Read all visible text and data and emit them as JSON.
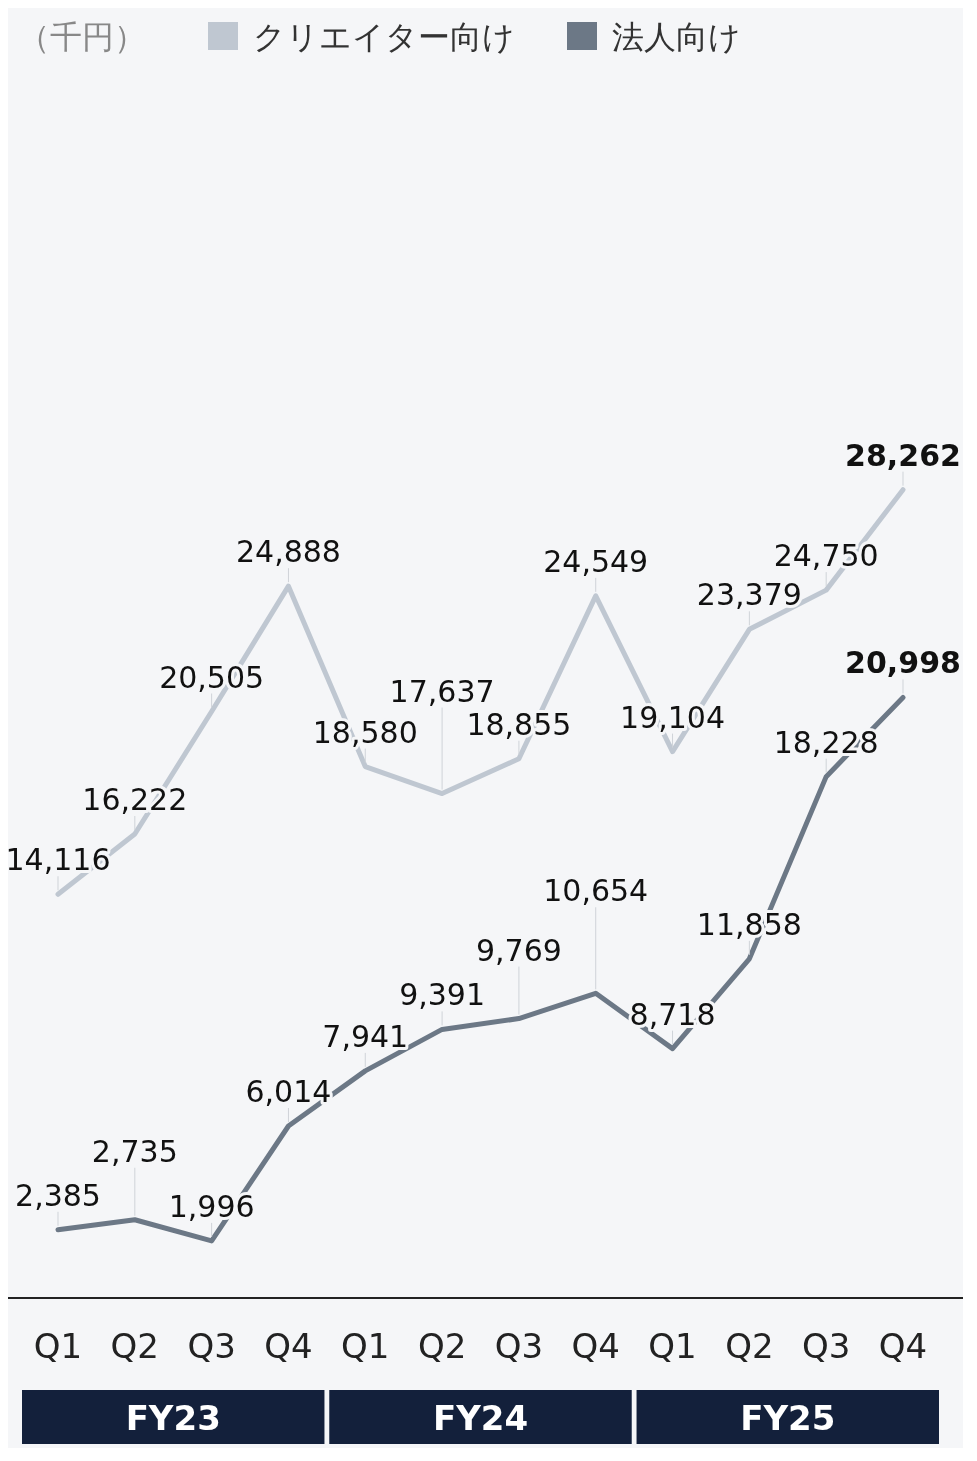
{
  "chart_data": {
    "type": "line",
    "categories": [
      "Q1",
      "Q2",
      "Q3",
      "Q4",
      "Q1",
      "Q2",
      "Q3",
      "Q4",
      "Q1",
      "Q2",
      "Q3",
      "Q4"
    ],
    "series": [
      {
        "name": "クリエイター向け",
        "color": "#bfc7d1",
        "values": [
          14116,
          16222,
          20505,
          24888,
          18580,
          17637,
          18855,
          24549,
          19104,
          23379,
          24750,
          28262
        ],
        "value_labels": [
          "14,116",
          "16,222",
          "20,505",
          "24,888",
          "18,580",
          "17,637",
          "18,855",
          "24,549",
          "19,104",
          "23,379",
          "24,750",
          "28,262"
        ]
      },
      {
        "name": "法人向け",
        "color": "#6c7886",
        "values": [
          2385,
          2735,
          1996,
          6014,
          7941,
          9391,
          9769,
          10654,
          8718,
          11858,
          18228,
          20998
        ],
        "value_labels": [
          "2,385",
          "2,735",
          "1,996",
          "6,014",
          "7,941",
          "9,391",
          "9,769",
          "10,654",
          "8,718",
          "11,858",
          "18,228",
          "20,998"
        ]
      }
    ],
    "marker": "none",
    "legend": "top",
    "grid": false,
    "annotations": [
      "（千円）",
      "FY23",
      "FY24",
      "FY25"
    ]
  }
}
